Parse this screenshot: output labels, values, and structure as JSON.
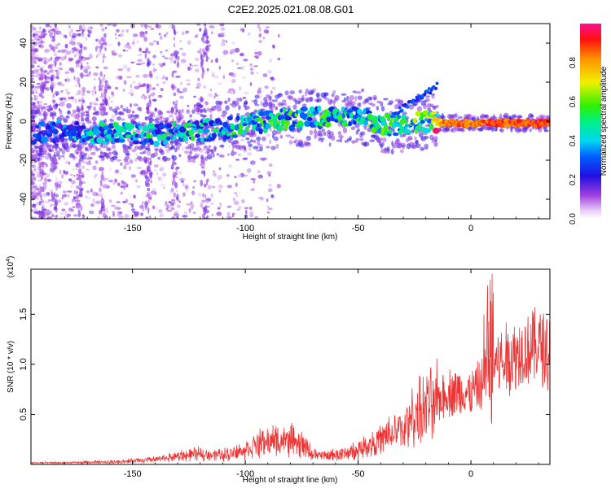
{
  "title": "C2E2.2025.021.08.08.G01",
  "colors": {
    "snr_line": "#ee3333",
    "spectrogram_low": "#8a2be2",
    "spectrogram_mid": "#00e5ee",
    "spectrogram_high": "#ff0000"
  },
  "chart_data": [
    {
      "type": "heatmap",
      "xlabel": "Height of straight line (km)",
      "ylabel": "Frequency (Hz)",
      "xlim": [
        -195,
        35
      ],
      "ylim": [
        -50,
        50
      ],
      "x_ticks": [
        -150,
        -100,
        -50,
        0
      ],
      "y_ticks": [
        -40,
        -20,
        0,
        20,
        40
      ],
      "colorbar": {
        "label": "Normalized spectral amplitude",
        "range": [
          0,
          1
        ],
        "ticks": [
          0.0,
          0.2,
          0.4,
          0.6,
          0.8
        ],
        "colormap": "rainbow"
      },
      "ridge": [
        {
          "x": -190,
          "f": -6,
          "amp": 0.25
        },
        {
          "x": -180,
          "f": -5,
          "amp": 0.3
        },
        {
          "x": -170,
          "f": -6,
          "amp": 0.35
        },
        {
          "x": -160,
          "f": -6,
          "amp": 0.4
        },
        {
          "x": -150,
          "f": -7,
          "amp": 0.4
        },
        {
          "x": -140,
          "f": -7,
          "amp": 0.4
        },
        {
          "x": -130,
          "f": -6,
          "amp": 0.4
        },
        {
          "x": -120,
          "f": -5,
          "amp": 0.4
        },
        {
          "x": -110,
          "f": -4,
          "amp": 0.4
        },
        {
          "x": -100,
          "f": -2,
          "amp": 0.45
        },
        {
          "x": -90,
          "f": 0,
          "amp": 0.45
        },
        {
          "x": -80,
          "f": 1,
          "amp": 0.45
        },
        {
          "x": -70,
          "f": 2,
          "amp": 0.45
        },
        {
          "x": -60,
          "f": 2,
          "amp": 0.45
        },
        {
          "x": -50,
          "f": 3,
          "amp": 0.4
        },
        {
          "x": -40,
          "f": -2,
          "amp": 0.5
        },
        {
          "x": -30,
          "f": -2,
          "amp": 0.5
        },
        {
          "x": -20,
          "f": 0,
          "amp": 0.55
        },
        {
          "x": -10,
          "f": -1,
          "amp": 0.95
        },
        {
          "x": 0,
          "f": -1,
          "amp": 0.9
        },
        {
          "x": 10,
          "f": -1,
          "amp": 0.95
        },
        {
          "x": 20,
          "f": -1,
          "amp": 0.95
        },
        {
          "x": 30,
          "f": -1,
          "amp": 0.95
        }
      ]
    },
    {
      "type": "line",
      "xlabel": "Height of straight line (km)",
      "ylabel": "SNR (10 * v/v)",
      "y_multiplier": "(x10",
      "y_multiplier_exp": "4",
      "y_multiplier_close": ")",
      "xlim": [
        -195,
        35
      ],
      "ylim": [
        0,
        1.95
      ],
      "x_ticks": [
        -150,
        -100,
        -50,
        0
      ],
      "y_ticks": [
        0.5,
        1.0,
        1.5
      ],
      "series": [
        {
          "x": [
            -195,
            -180,
            -160,
            -140,
            -130,
            -120,
            -110,
            -100,
            -95,
            -90,
            -85,
            -80,
            -75,
            -70,
            -65,
            -60,
            -55,
            -50,
            -45,
            -40,
            -35,
            -30,
            -25,
            -20,
            -15,
            -10,
            -5,
            0,
            5,
            10,
            15,
            20,
            25,
            30,
            35
          ],
          "y": [
            0.02,
            0.02,
            0.03,
            0.06,
            0.1,
            0.13,
            0.12,
            0.18,
            0.25,
            0.28,
            0.3,
            0.3,
            0.25,
            0.13,
            0.1,
            0.12,
            0.14,
            0.18,
            0.25,
            0.3,
            0.38,
            0.45,
            0.62,
            0.7,
            0.8,
            0.9,
            0.9,
            0.88,
            1.0,
            1.25,
            1.3,
            1.38,
            1.45,
            1.48,
            1.48
          ]
        }
      ]
    }
  ]
}
